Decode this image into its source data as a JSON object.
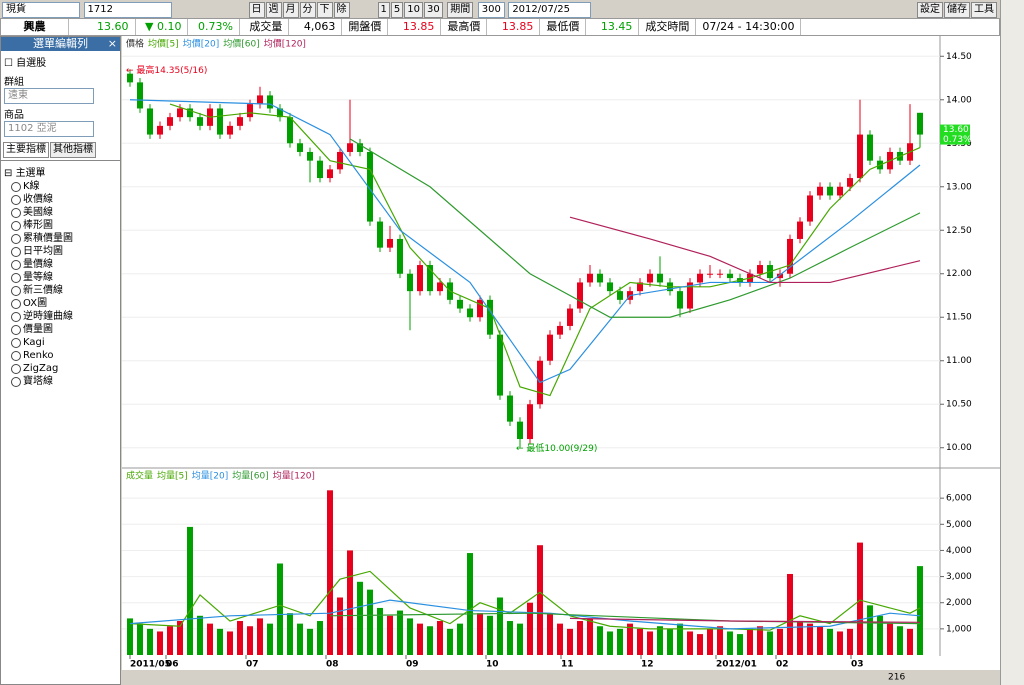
{
  "toolbar": {
    "market": "現貨",
    "code": "1712",
    "periods": [
      "日",
      "週",
      "月",
      "分",
      "下",
      "除"
    ],
    "intervals": [
      "1",
      "5",
      "10",
      "30"
    ],
    "period_label": "期間",
    "count": "300",
    "date": "2012/07/25",
    "actions": [
      "設定",
      "儲存",
      "工具"
    ]
  },
  "quote": {
    "name": "興農",
    "price": "13.60",
    "change": "▼ 0.10",
    "change_pct": "0.73%",
    "fields": [
      {
        "label": "成交量",
        "value": "4,063"
      },
      {
        "label": "開盤價",
        "value": "13.85"
      },
      {
        "label": "最高價",
        "value": "13.85"
      },
      {
        "label": "最低價",
        "value": "13.45"
      },
      {
        "label": "成交時間",
        "value": "07/24 - 14:30:00"
      }
    ]
  },
  "sidebar": {
    "title": "選單編輯列",
    "close": "×",
    "watchlist": "自選股",
    "group_label": "群組",
    "group": "遠東",
    "product_label": "商品",
    "product": "1102 亞泥",
    "tabs": [
      "主要指標",
      "其他指標"
    ],
    "root": "主選單",
    "items": [
      "K線",
      "收價線",
      "美國線",
      "棒形圖",
      "累積價量圖",
      "日平均圖",
      "量價線",
      "量等線",
      "新三價線",
      "OX圖",
      "逆時鐘曲線",
      "價量圖",
      "Kagi",
      "Renko",
      "ZigZag",
      "寶塔線"
    ]
  },
  "scroll": {
    "value": "216"
  },
  "chart_data": [
    {
      "type": "candlestick",
      "label": "價格",
      "up_color": "#e8001c",
      "down_color": "#00a000",
      "candles": [
        [
          14.3,
          14.35,
          14.15,
          14.2
        ],
        [
          14.2,
          14.25,
          13.85,
          13.9
        ],
        [
          13.9,
          13.95,
          13.55,
          13.6
        ],
        [
          13.6,
          13.75,
          13.55,
          13.7
        ],
        [
          13.7,
          13.85,
          13.65,
          13.8
        ],
        [
          13.8,
          13.95,
          13.75,
          13.9
        ],
        [
          13.9,
          13.95,
          13.75,
          13.8
        ],
        [
          13.8,
          13.85,
          13.65,
          13.7
        ],
        [
          13.7,
          13.95,
          13.65,
          13.9
        ],
        [
          13.9,
          13.95,
          13.55,
          13.6
        ],
        [
          13.6,
          13.75,
          13.55,
          13.7
        ],
        [
          13.7,
          13.85,
          13.65,
          13.8
        ],
        [
          13.8,
          14.0,
          13.75,
          13.95
        ],
        [
          13.95,
          14.15,
          13.9,
          14.05
        ],
        [
          14.05,
          14.1,
          13.85,
          13.9
        ],
        [
          13.9,
          13.95,
          13.75,
          13.8
        ],
        [
          13.8,
          13.85,
          13.45,
          13.5
        ],
        [
          13.5,
          13.55,
          13.35,
          13.4
        ],
        [
          13.4,
          13.45,
          13.05,
          13.3
        ],
        [
          13.3,
          13.35,
          13.05,
          13.1
        ],
        [
          13.1,
          13.25,
          13.05,
          13.2
        ],
        [
          13.2,
          13.45,
          13.15,
          13.4
        ],
        [
          13.4,
          14.0,
          13.35,
          13.5
        ],
        [
          13.5,
          13.55,
          13.35,
          13.4
        ],
        [
          13.4,
          13.45,
          12.55,
          12.6
        ],
        [
          12.6,
          12.65,
          12.25,
          12.3
        ],
        [
          12.3,
          12.55,
          12.25,
          12.4
        ],
        [
          12.4,
          12.45,
          11.95,
          12.0
        ],
        [
          12.0,
          12.05,
          11.35,
          11.8
        ],
        [
          11.8,
          12.15,
          11.75,
          12.1
        ],
        [
          12.1,
          12.15,
          11.75,
          11.8
        ],
        [
          11.8,
          11.95,
          11.75,
          11.9
        ],
        [
          11.9,
          11.95,
          11.65,
          11.7
        ],
        [
          11.7,
          11.75,
          11.55,
          11.6
        ],
        [
          11.6,
          11.65,
          11.45,
          11.5
        ],
        [
          11.5,
          11.75,
          11.45,
          11.7
        ],
        [
          11.7,
          11.75,
          11.25,
          11.3
        ],
        [
          11.3,
          11.35,
          10.55,
          10.6
        ],
        [
          10.6,
          10.65,
          10.25,
          10.3
        ],
        [
          10.3,
          10.35,
          10.0,
          10.1
        ],
        [
          10.1,
          10.55,
          10.05,
          10.5
        ],
        [
          10.5,
          11.05,
          10.45,
          11.0
        ],
        [
          11.0,
          11.35,
          10.95,
          11.3
        ],
        [
          11.3,
          11.45,
          11.25,
          11.4
        ],
        [
          11.4,
          11.65,
          11.35,
          11.6
        ],
        [
          11.6,
          11.95,
          11.55,
          11.9
        ],
        [
          11.9,
          12.1,
          11.85,
          12.0
        ],
        [
          12.0,
          12.05,
          11.85,
          11.9
        ],
        [
          11.9,
          11.95,
          11.75,
          11.8
        ],
        [
          11.8,
          11.85,
          11.65,
          11.7
        ],
        [
          11.7,
          11.85,
          11.65,
          11.8
        ],
        [
          11.8,
          11.95,
          11.75,
          11.9
        ],
        [
          11.9,
          12.05,
          11.85,
          12.0
        ],
        [
          12.0,
          12.2,
          11.85,
          11.9
        ],
        [
          11.9,
          11.95,
          11.75,
          11.8
        ],
        [
          11.8,
          11.85,
          11.5,
          11.6
        ],
        [
          11.6,
          11.95,
          11.55,
          11.9
        ],
        [
          11.9,
          12.05,
          11.85,
          12.0
        ],
        [
          12.0,
          12.1,
          11.95,
          12.0
        ],
        [
          12.0,
          12.05,
          11.95,
          12.0
        ],
        [
          12.0,
          12.05,
          11.9,
          11.95
        ],
        [
          11.95,
          12.0,
          11.85,
          11.9
        ],
        [
          11.9,
          12.05,
          11.85,
          12.0
        ],
        [
          12.0,
          12.15,
          11.95,
          12.1
        ],
        [
          12.1,
          12.15,
          11.9,
          11.95
        ],
        [
          11.95,
          12.05,
          11.85,
          12.0
        ],
        [
          12.0,
          12.45,
          11.95,
          12.4
        ],
        [
          12.4,
          12.65,
          12.35,
          12.6
        ],
        [
          12.6,
          12.95,
          12.55,
          12.9
        ],
        [
          12.9,
          13.05,
          12.85,
          13.0
        ],
        [
          13.0,
          13.05,
          12.85,
          12.9
        ],
        [
          12.9,
          13.05,
          12.85,
          13.0
        ],
        [
          13.0,
          13.15,
          12.95,
          13.1
        ],
        [
          13.1,
          14.0,
          13.05,
          13.6
        ],
        [
          13.6,
          13.65,
          13.25,
          13.3
        ],
        [
          13.3,
          13.35,
          13.15,
          13.2
        ],
        [
          13.2,
          13.45,
          13.15,
          13.4
        ],
        [
          13.4,
          13.45,
          13.25,
          13.3
        ],
        [
          13.3,
          13.95,
          13.25,
          13.5
        ],
        [
          13.85,
          13.85,
          13.45,
          13.6
        ]
      ],
      "series": [
        {
          "name": "均價[5]",
          "color": "#46a800",
          "x": [
            4,
            8,
            12,
            16,
            20,
            24,
            28,
            32,
            36,
            39,
            42,
            46,
            50,
            54,
            58,
            62,
            66,
            70,
            74,
            79
          ],
          "values": [
            13.95,
            13.8,
            13.85,
            13.8,
            13.3,
            13.2,
            12.3,
            11.8,
            11.6,
            10.7,
            10.6,
            11.6,
            11.9,
            11.85,
            11.85,
            11.95,
            12.1,
            12.75,
            13.2,
            13.45
          ]
        },
        {
          "name": "均價[20]",
          "color": "#2a8fe0",
          "x": [
            0,
            14,
            20,
            27,
            34,
            41,
            44,
            50,
            58,
            64,
            72,
            79
          ],
          "values": [
            14.0,
            13.95,
            13.6,
            12.5,
            11.9,
            10.75,
            10.9,
            11.75,
            11.9,
            11.9,
            12.6,
            13.25
          ]
        },
        {
          "name": "均價[60]",
          "color": "#2e9a2e",
          "x": [
            22,
            30,
            40,
            48,
            54,
            60,
            66,
            72,
            79
          ],
          "values": [
            13.55,
            13.0,
            12.0,
            11.5,
            11.5,
            11.7,
            11.95,
            12.3,
            12.7
          ]
        },
        {
          "name": "均價[120]",
          "color": "#b0205a",
          "x": [
            44,
            52,
            58,
            64,
            70,
            79
          ],
          "values": [
            12.65,
            12.4,
            12.2,
            11.9,
            11.9,
            12.15
          ]
        }
      ],
      "ylim": [
        9.79,
        14.71
      ],
      "yticks": [
        {
          "value": 10,
          "label": "10.00"
        },
        {
          "value": 10.5,
          "label": "10.50"
        },
        {
          "value": 11,
          "label": "11.00"
        },
        {
          "value": 11.5,
          "label": "11.50"
        },
        {
          "value": 12,
          "label": "12.00"
        },
        {
          "value": 12.5,
          "label": "12.50"
        },
        {
          "value": 13,
          "label": "13.00"
        },
        {
          "value": 13.5,
          "label": "13.50"
        },
        {
          "value": 14,
          "label": "14.00"
        },
        {
          "value": 14.5,
          "label": "14.50"
        }
      ],
      "annotations": [
        {
          "text": "← 最高14.35(5/16)",
          "x": 0,
          "y": 14.35
        },
        {
          "text": "← 最低10.00(9/29)",
          "x": 39,
          "y": 10.0
        }
      ],
      "last_tag": {
        "price": "13.60",
        "pct": "0.73%",
        "y": 13.6
      }
    },
    {
      "type": "bar",
      "label": "成交量",
      "up_color": "#e8001c",
      "down_color": "#00a000",
      "values": [
        1400,
        1200,
        1000,
        900,
        1100,
        1300,
        4900,
        1500,
        1200,
        1000,
        900,
        1300,
        1100,
        1400,
        1200,
        3500,
        1600,
        1200,
        1000,
        1300,
        6300,
        2200,
        4000,
        2800,
        2500,
        1800,
        1500,
        1700,
        1400,
        1200,
        1100,
        1300,
        1000,
        1200,
        3900,
        1600,
        1500,
        2200,
        1300,
        1200,
        2000,
        4200,
        1600,
        1200,
        1000,
        1300,
        1400,
        1100,
        900,
        1000,
        1200,
        1000,
        900,
        1100,
        1000,
        1200,
        900,
        800,
        1000,
        1100,
        900,
        800,
        1000,
        1100,
        900,
        1000,
        3100,
        1300,
        1200,
        1100,
        1000,
        900,
        1000,
        4300,
        1900,
        1500,
        1200,
        1100,
        1000,
        3400
      ],
      "series": [
        {
          "name": "均量[5]",
          "color": "#46a800",
          "x": [
            0,
            5,
            7,
            10,
            15,
            18,
            21,
            24,
            28,
            32,
            35,
            38,
            41,
            44,
            48,
            52,
            56,
            60,
            64,
            67,
            70,
            73,
            75,
            78,
            79
          ],
          "values": [
            1200,
            1100,
            2300,
            1300,
            1900,
            1500,
            2900,
            3200,
            1800,
            1200,
            2000,
            1600,
            2400,
            1500,
            1100,
            1000,
            1000,
            1000,
            950,
            1500,
            1200,
            2100,
            1900,
            1600,
            1800
          ]
        },
        {
          "name": "均量[20]",
          "color": "#2a8fe0",
          "x": [
            0,
            10,
            20,
            26,
            34,
            42,
            50,
            60,
            70,
            76,
            79
          ],
          "values": [
            1200,
            1500,
            1600,
            2100,
            1700,
            1600,
            1300,
            1000,
            1100,
            1600,
            1500
          ]
        },
        {
          "name": "均量[60]",
          "color": "#2e9a2e",
          "x": [
            20,
            40,
            60,
            79
          ],
          "values": [
            1500,
            1600,
            1300,
            1200
          ]
        },
        {
          "name": "均量[120]",
          "color": "#b0205a",
          "x": [
            44,
            60,
            79
          ],
          "values": [
            1400,
            1300,
            1250
          ]
        }
      ],
      "ylim": [
        0,
        6580
      ],
      "yticks": [
        {
          "value": 1000,
          "label": "1,000"
        },
        {
          "value": 2000,
          "label": "2,000"
        },
        {
          "value": 3000,
          "label": "3,000"
        },
        {
          "value": 4000,
          "label": "4,000"
        },
        {
          "value": 5000,
          "label": "5,000"
        },
        {
          "value": 6000,
          "label": "6,000"
        }
      ],
      "xticks": [
        {
          "value": 0,
          "label": "2011/05"
        },
        {
          "value": 3.6,
          "label": "06"
        },
        {
          "value": 11.6,
          "label": "07"
        },
        {
          "value": 19.6,
          "label": "08"
        },
        {
          "value": 27.6,
          "label": "09"
        },
        {
          "value": 35.6,
          "label": "10"
        },
        {
          "value": 43.1,
          "label": "11"
        },
        {
          "value": 51.1,
          "label": "12"
        },
        {
          "value": 58.6,
          "label": "2012/01"
        },
        {
          "value": 64.6,
          "label": "02"
        },
        {
          "value": 72.1,
          "label": "03"
        }
      ]
    }
  ]
}
